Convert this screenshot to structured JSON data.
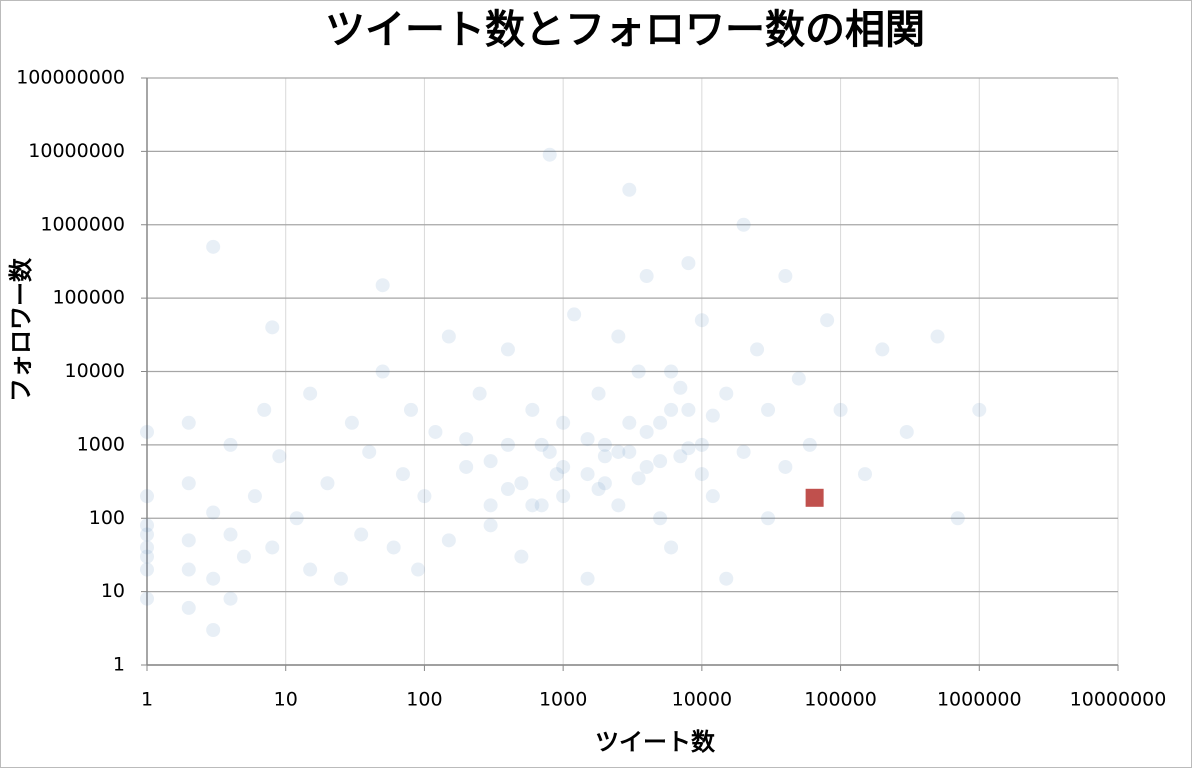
{
  "chart_data": {
    "type": "scatter",
    "title": "ツイート数とフォロワー数の相関",
    "x_label": "ツイート数",
    "y_label": "フォロワー数",
    "xscale": "log",
    "yscale": "log",
    "grid": true,
    "xlim": [
      1,
      10000000
    ],
    "xticks": [
      1,
      10,
      100,
      1000,
      10000,
      100000,
      1000000,
      10000000
    ],
    "ylim": [
      1,
      100000000
    ],
    "yticks": [
      1,
      10,
      100,
      1000,
      10000,
      100000,
      1000000,
      10000000,
      100000000
    ],
    "series": [
      {
        "color": "#4f81bd",
        "marker": "circle",
        "opacity": 0.13,
        "x": [
          1,
          1,
          1,
          1,
          1,
          1,
          1,
          1,
          2,
          2,
          2,
          2,
          2,
          3,
          3,
          3,
          3,
          4,
          4,
          4,
          5,
          6,
          7,
          8,
          8,
          9,
          12,
          15,
          15,
          20,
          25,
          30,
          35,
          40,
          50,
          50,
          60,
          70,
          80,
          90,
          100,
          120,
          150,
          150,
          200,
          250,
          300,
          300,
          400,
          400,
          500,
          500,
          600,
          700,
          800,
          800,
          1000,
          1000,
          1200,
          1500,
          1500,
          1800,
          2000,
          2000,
          2500,
          2500,
          3000,
          3000,
          3500,
          4000,
          4000,
          5000,
          5000,
          6000,
          6000,
          7000,
          8000,
          8000,
          10000,
          10000,
          12000,
          15000,
          15000,
          20000,
          20000,
          25000,
          30000,
          30000,
          40000,
          40000,
          50000,
          60000,
          80000,
          100000,
          150000,
          200000,
          300000,
          500000,
          700000,
          1000000,
          1000,
          2000,
          3000,
          4000,
          5000,
          700,
          900,
          1500,
          2500,
          6000,
          8000,
          12000,
          1800,
          3500,
          600,
          400,
          300,
          200,
          10000,
          7000
        ],
        "values": [
          40,
          30,
          80,
          200,
          1500,
          8,
          20,
          60,
          6,
          50,
          300,
          2000,
          20,
          15,
          3,
          500000,
          120,
          1000,
          8,
          60,
          30,
          200,
          3000,
          40,
          40000,
          700,
          100,
          20,
          5000,
          300,
          15,
          2000,
          60,
          800,
          150000,
          10000,
          40,
          400,
          3000,
          20,
          200,
          1500,
          50,
          30000,
          500,
          5000,
          80,
          150,
          1000,
          20000,
          300,
          30,
          3000,
          150,
          9000000,
          800,
          200,
          2000,
          60000,
          400,
          15,
          5000,
          300,
          1000,
          30000,
          150,
          800,
          3000000,
          10000,
          500,
          200000,
          2000,
          100,
          40,
          10000,
          700,
          300000,
          3000,
          1000,
          50000,
          200,
          5000,
          15,
          800,
          1000000,
          20000,
          3000,
          100,
          500,
          200000,
          8000,
          1000,
          50000,
          3000,
          400,
          20000,
          1500,
          30000,
          100,
          3000,
          500,
          700,
          2000,
          1500,
          600,
          1000,
          400,
          1200,
          800,
          3000,
          900,
          2500,
          250,
          350,
          150,
          250,
          600,
          1200,
          400,
          6000
        ]
      },
      {
        "color": "#c0504d",
        "marker": "square",
        "opacity": 1,
        "x": [
          65000
        ],
        "values": [
          190
        ]
      }
    ]
  }
}
